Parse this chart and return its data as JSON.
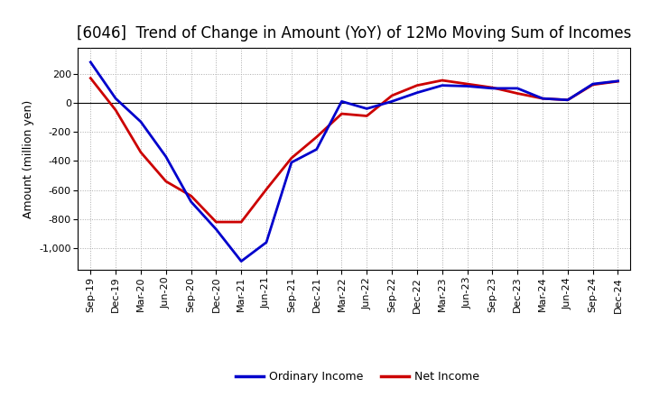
{
  "title": "[6046]  Trend of Change in Amount (YoY) of 12Mo Moving Sum of Incomes",
  "ylabel": "Amount (million yen)",
  "background_color": "#ffffff",
  "grid_color": "#aaaaaa",
  "x_labels": [
    "Sep-19",
    "Dec-19",
    "Mar-20",
    "Jun-20",
    "Sep-20",
    "Dec-20",
    "Mar-21",
    "Jun-21",
    "Sep-21",
    "Dec-21",
    "Mar-22",
    "Jun-22",
    "Sep-22",
    "Dec-22",
    "Mar-23",
    "Jun-23",
    "Sep-23",
    "Dec-23",
    "Mar-24",
    "Jun-24",
    "Sep-24",
    "Dec-24"
  ],
  "ordinary_income": [
    280,
    30,
    -130,
    -370,
    -680,
    -870,
    -1090,
    -960,
    -410,
    -320,
    10,
    -40,
    10,
    70,
    120,
    115,
    100,
    100,
    30,
    20,
    130,
    150
  ],
  "net_income": [
    170,
    -50,
    -340,
    -540,
    -640,
    -820,
    -820,
    -595,
    -380,
    -235,
    -75,
    -90,
    50,
    120,
    155,
    130,
    105,
    65,
    30,
    20,
    125,
    148
  ],
  "ordinary_color": "#0000cc",
  "net_color": "#cc0000",
  "ylim_min": -1150,
  "ylim_max": 380,
  "yticks": [
    -1000,
    -800,
    -600,
    -400,
    -200,
    0,
    200
  ],
  "line_width": 2.0,
  "title_fontsize": 12,
  "legend_labels": [
    "Ordinary Income",
    "Net Income"
  ]
}
